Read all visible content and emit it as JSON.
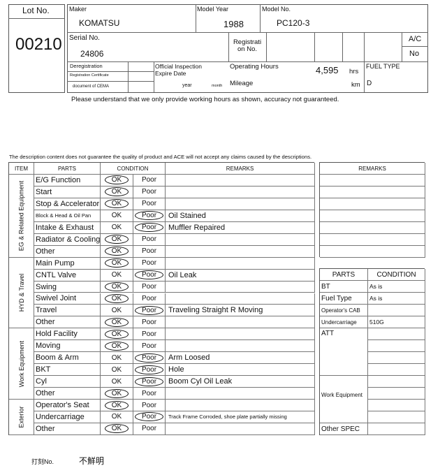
{
  "header": {
    "lot_label": "Lot No.",
    "lot_no": "00210",
    "maker_label": "Maker",
    "maker": "KOMATSU",
    "model_year_label": "Model Year",
    "model_year": "1988",
    "model_no_label": "Model No.",
    "model_no": "PC120-3",
    "serial_label": "Serial No.",
    "serial": "24806",
    "registration_label": "Registrati on No.",
    "ac_label": "A/C",
    "ac": "No",
    "deregistration_label": "Deregistration",
    "reg_cert_label": "Registration Certificate",
    "cema_label": "document of CEMA",
    "inspection_label_1": "Official Inspection",
    "inspection_label_2": "Expire Date",
    "year_label": "year",
    "month_label": "month",
    "operating_hours_label": "Operating Hours",
    "operating_hours": "4,595",
    "hrs_unit": "hrs",
    "mileage_label": "Mileage",
    "km_unit": "km",
    "fuel_type_label": "FUEL TYPE",
    "fuel_type": "D"
  },
  "notice_hours": "Please understand that we only provide working hours as shown, accuracy not guaranteed.",
  "disclaimer": "The description content does not guarantee the quality of product and ACE will not accept any claims caused by the descriptions.",
  "table": {
    "headers": {
      "item": "ITEM",
      "parts": "PARTS",
      "condition": "CONDITION",
      "remarks": "REMARKS"
    },
    "ok_label": "OK",
    "poor_label": "Poor",
    "groups": [
      {
        "name": "EG & Related Equipment",
        "rows": [
          {
            "part": "E/G Function",
            "condition": "OK",
            "remarks": ""
          },
          {
            "part": "Start",
            "condition": "OK",
            "remarks": ""
          },
          {
            "part": "Stop & Accelerator",
            "condition": "OK",
            "remarks": ""
          },
          {
            "part": "Block & Head & Oil Pan",
            "condition": "Poor",
            "remarks": "Oil Stained"
          },
          {
            "part": "Intake & Exhaust",
            "condition": "Poor",
            "remarks": "Muffler Repaired"
          },
          {
            "part": "Radiator & Cooling",
            "condition": "OK",
            "remarks": ""
          },
          {
            "part": "Other",
            "condition": "OK",
            "remarks": ""
          }
        ]
      },
      {
        "name": "HYD & Travel",
        "rows": [
          {
            "part": "Main Pump",
            "condition": "OK",
            "remarks": ""
          },
          {
            "part": "CNTL Valve",
            "condition": "Poor",
            "remarks": "Oil Leak"
          },
          {
            "part": "Swing",
            "condition": "OK",
            "remarks": ""
          },
          {
            "part": "Swivel Joint",
            "condition": "OK",
            "remarks": ""
          },
          {
            "part": "Travel",
            "condition": "Poor",
            "remarks": "Traveling Straight R Moving"
          },
          {
            "part": "Other",
            "condition": "OK",
            "remarks": ""
          }
        ]
      },
      {
        "name": "Work Equipment",
        "rows": [
          {
            "part": "Hold Facility",
            "condition": "OK",
            "remarks": ""
          },
          {
            "part": "Moving",
            "condition": "OK",
            "remarks": ""
          },
          {
            "part": "Boom & Arm",
            "condition": "Poor",
            "remarks": "Arm Loosed"
          },
          {
            "part": "BKT",
            "condition": "Poor",
            "remarks": "Hole"
          },
          {
            "part": "Cyl",
            "condition": "Poor",
            "remarks": "Boom Cyl Oil Leak"
          },
          {
            "part": "Other",
            "condition": "OK",
            "remarks": ""
          }
        ]
      },
      {
        "name": "Exterior",
        "rows": [
          {
            "part": "Operator's Seat",
            "condition": "OK",
            "remarks": ""
          },
          {
            "part": "Undercarriage",
            "condition": "Poor",
            "remarks": "Track Frame Corroded, shoe plate partially missing"
          },
          {
            "part": "Other",
            "condition": "OK",
            "remarks": ""
          }
        ]
      }
    ]
  },
  "side_remarks": {
    "header": "REMARKS",
    "rows": [
      "",
      "",
      "",
      "",
      "",
      "",
      ""
    ]
  },
  "spec": {
    "headers": {
      "parts": "PARTS",
      "condition": "CONDITION"
    },
    "rows": [
      {
        "part": "BT",
        "condition": "As is"
      },
      {
        "part": "Fuel Type",
        "condition": "As is"
      },
      {
        "part": "Operator's CAB",
        "condition": ""
      },
      {
        "part": "Undercarriage",
        "condition": "510G"
      }
    ],
    "att_label": "ATT",
    "work_equipment_label": "Work Equipment",
    "other_spec_label": "Other SPEC"
  },
  "footer": {
    "stamp_label": "打刻No.",
    "stamp_value": "不鮮明"
  }
}
